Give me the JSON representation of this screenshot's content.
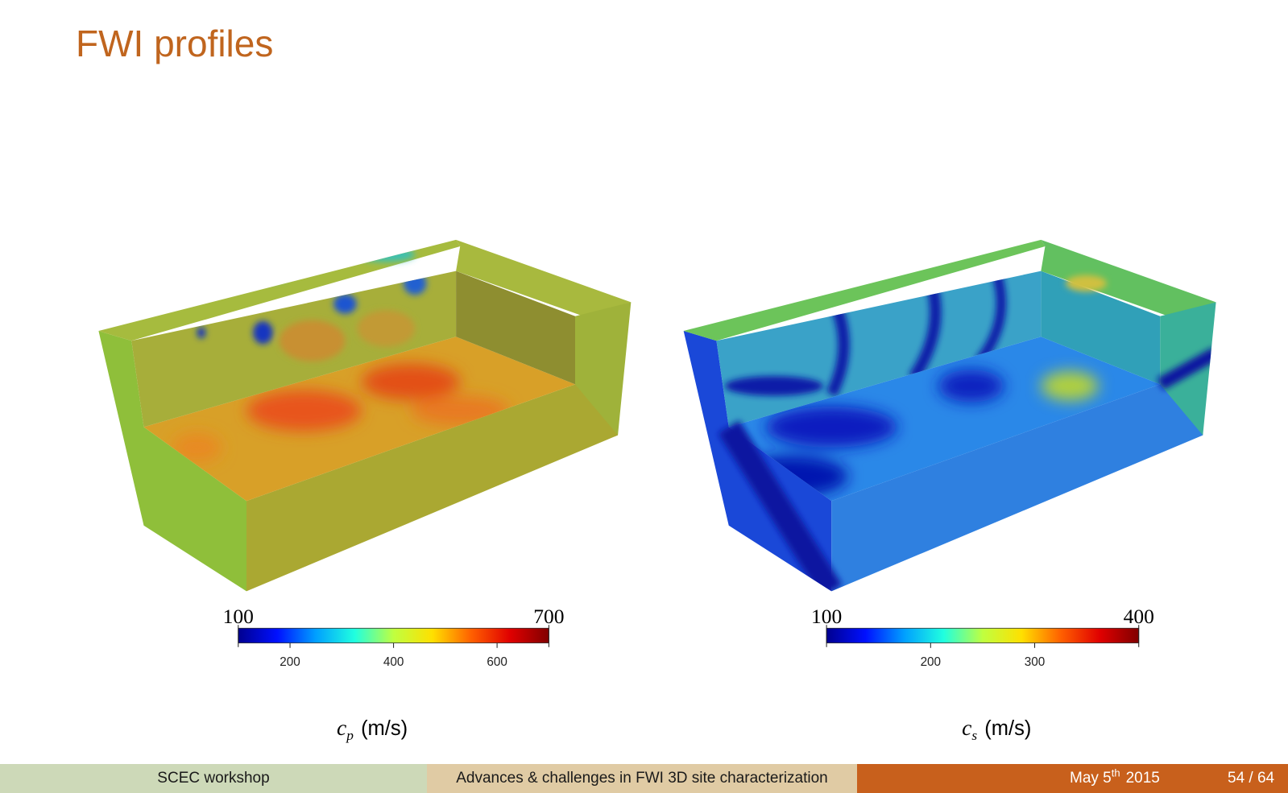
{
  "header": {
    "title": "FWI profiles"
  },
  "panels": [
    {
      "colorbar": {
        "range": [
          100,
          700
        ],
        "ticks": [
          200,
          400,
          600
        ],
        "colormap": [
          "#00008f",
          "#0010ff",
          "#00a0ff",
          "#20ffdf",
          "#bfff40",
          "#ffe000",
          "#ff6000",
          "#e00000",
          "#800000"
        ]
      },
      "label": {
        "symbol": "c",
        "subscript": "p",
        "unit": "(m/s)"
      }
    },
    {
      "colorbar": {
        "range": [
          100,
          400
        ],
        "ticks": [
          200,
          300
        ],
        "colormap": [
          "#00008f",
          "#0010ff",
          "#00a0ff",
          "#20ffdf",
          "#bfff40",
          "#ffe000",
          "#ff6000",
          "#e00000",
          "#800000"
        ]
      },
      "label": {
        "symbol": "c",
        "subscript": "s",
        "unit": "(m/s)"
      }
    }
  ],
  "footer": {
    "event": "SCEC workshop",
    "talk": "Advances & challenges in FWI 3D site characterization",
    "date": {
      "month_day": "May 5",
      "suffix": "th",
      "year": "2015"
    },
    "page": "54 / 64"
  }
}
